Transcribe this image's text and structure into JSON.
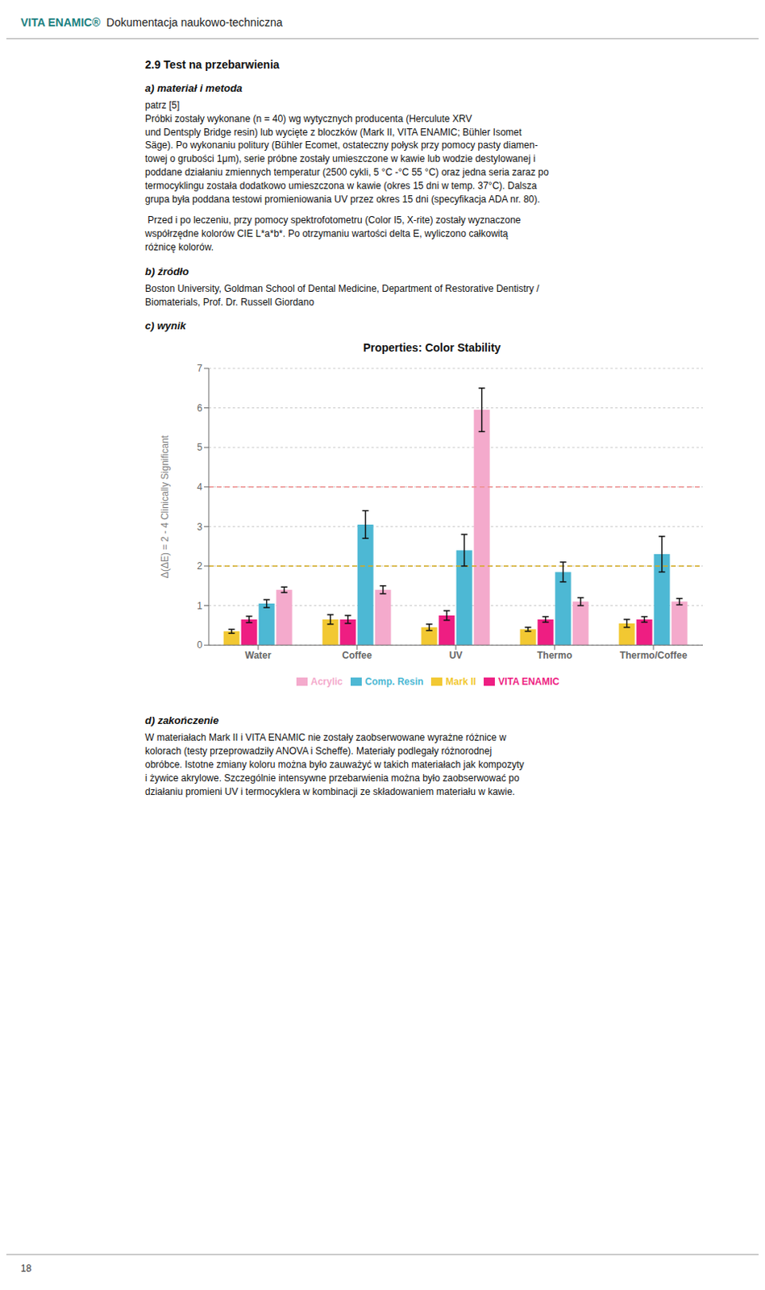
{
  "chart_data": {
    "type": "bar",
    "title": "Properties: Color Stability",
    "ylabel": "Δ(ΔE) = 2 - 4 Clinically Significant",
    "categories": [
      "Water",
      "Coffee",
      "UV",
      "Thermo",
      "Thermo/Coffee"
    ],
    "series": [
      {
        "name": "Mark II",
        "color": "#F2C832",
        "values": [
          0.35,
          0.65,
          0.45,
          0.4,
          0.55
        ],
        "errors": [
          0.05,
          0.12,
          0.08,
          0.05,
          0.1
        ]
      },
      {
        "name": "VITA ENAMIC",
        "color": "#EE1E82",
        "values": [
          0.65,
          0.65,
          0.75,
          0.65,
          0.65
        ],
        "errors": [
          0.08,
          0.1,
          0.12,
          0.07,
          0.07
        ]
      },
      {
        "name": "Comp. Resin",
        "color": "#4DB8D4",
        "values": [
          1.05,
          3.05,
          2.4,
          1.85,
          2.3
        ],
        "errors": [
          0.1,
          0.35,
          0.4,
          0.25,
          0.45
        ]
      },
      {
        "name": "Acrylic",
        "color": "#F4AACC",
        "values": [
          1.4,
          1.4,
          5.95,
          1.1,
          1.1
        ],
        "errors": [
          0.07,
          0.1,
          0.55,
          0.1,
          0.08
        ]
      }
    ],
    "ylim": [
      0,
      7
    ],
    "yticks": [
      0,
      1,
      2,
      3,
      4,
      5,
      6,
      7
    ],
    "grid": true,
    "reference_lines": [
      {
        "value": 2.0,
        "color": "#D4AA20"
      },
      {
        "value": 4.0,
        "color": "#EE9090"
      }
    ],
    "annotations": [
      "VITA ENAMIC®",
      "  Dokumentacja naukowo-techniczna",
      "2.9 Test na przebarwienia",
      "a)  materiał i metoda",
      "patrz [5]\nPróbki zostały wykonane (n = 40) wg wytycznych producenta (Herculute XRV\nund Dentsply Bridge resin) lub wycięte z bloczków (Mark II, VITA ENAMIC; Bühler Isomet\nSäge). Po wykonaniu politury (Bühler Ecomet, ostateczny połysk przy pomocy pasty diamen-\ntowej o grubości 1μm), serie próbne zostały umieszczone w kawie lub wodzie destylowanej i\npoddane działaniu zmiennych temperatur (2500 cykli, 5 °C -°C 55 °C) oraz jedna seria zaraz po\ntermocyklingu została dodatkowo umieszczona w kawie (okres 15 dni w temp. 37°C). Dalsza\ngrupa była poddana testowi promieniowania UV przez okres 15 dni (specyfikacja ADA nr. 80).",
      " Przed i po leczeniu, przy pomocy spektrofotometru (Color I5, X-rite) zostały wyznaczone\nwspółrzędne kolorów CIE L*a*b*. Po otrzymaniu wartości delta E, wyliczono całkowitą\nróżnicę kolorów.",
      "b) źródło",
      "Boston University, Goldman School of Dental Medicine, Department of Restorative Dentistry /\nBiomaterials, Prof. Dr. Russell Giordano",
      "c)  wynik",
      "d)  zakończenie",
      "W materiałach Mark II i VITA ENAMIC nie zostały zaobserwowane wyrażne różnice w\nkolorach (testy przeprowadziły ANOVA i Scheffe). Materiały podlegały różnorodnej\nobróbce. Istotne zmiany koloru można było zauważyć w takich materiałach jak kompozyty\ni żywice akrylowe. Szczególnie intensywne przebarwienia można było zaobserwować po\ndziałaniu promieni UV i termocyklera w kombinacji ze składowaniem materiału w kawie.",
      "18"
    ]
  }
}
